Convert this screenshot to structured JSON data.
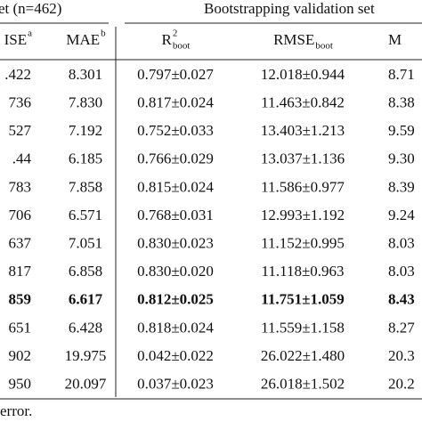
{
  "header": {
    "group_left": "et (n=462)",
    "group_right": "Bootstrapping validation set"
  },
  "columns": [
    {
      "main": "ISE",
      "sup": "a"
    },
    {
      "main": "MAE",
      "sup": "b"
    },
    {
      "main": "R",
      "sup": "2",
      "sub": "boot"
    },
    {
      "main": "RMSE",
      "sub": "boot"
    },
    {
      "main": "M"
    }
  ],
  "rows": [
    {
      "cells": [
        ".422",
        "8.301",
        "0.797±0.027",
        "12.018±0.944",
        "8.71"
      ]
    },
    {
      "cells": [
        "736",
        "7.830",
        "0.817±0.024",
        "11.463±0.842",
        "8.38"
      ]
    },
    {
      "cells": [
        "527",
        "7.192",
        "0.752±0.033",
        "13.403±1.213",
        "9.59"
      ]
    },
    {
      "cells": [
        ".44",
        "6.185",
        "0.766±0.029",
        "13.037±1.136",
        "9.30"
      ]
    },
    {
      "cells": [
        "783",
        "7.858",
        "0.815±0.024",
        "11.586±0.977",
        "8.39"
      ]
    },
    {
      "cells": [
        "706",
        "6.571",
        "0.768±0.031",
        "12.993±1.192",
        "9.24"
      ]
    },
    {
      "cells": [
        "637",
        "7.051",
        "0.830±0.023",
        "11.152±0.995",
        "8.03"
      ]
    },
    {
      "cells": [
        "817",
        "6.858",
        "0.830±0.020",
        "11.118±0.963",
        "8.03"
      ]
    },
    {
      "cells": [
        "859",
        "6.617",
        "0.812±0.025",
        "11.751±1.059",
        "8.43"
      ],
      "bold": true
    },
    {
      "cells": [
        "651",
        "6.428",
        "0.818±0.024",
        "11.559±1.158",
        "8.27"
      ]
    },
    {
      "cells": [
        "902",
        "19.975",
        "0.042±0.022",
        "26.022±1.480",
        "20.3"
      ]
    },
    {
      "cells": [
        "950",
        "20.097",
        "0.037±0.023",
        "26.018±1.502",
        "20.2"
      ]
    }
  ],
  "footnote": "error."
}
